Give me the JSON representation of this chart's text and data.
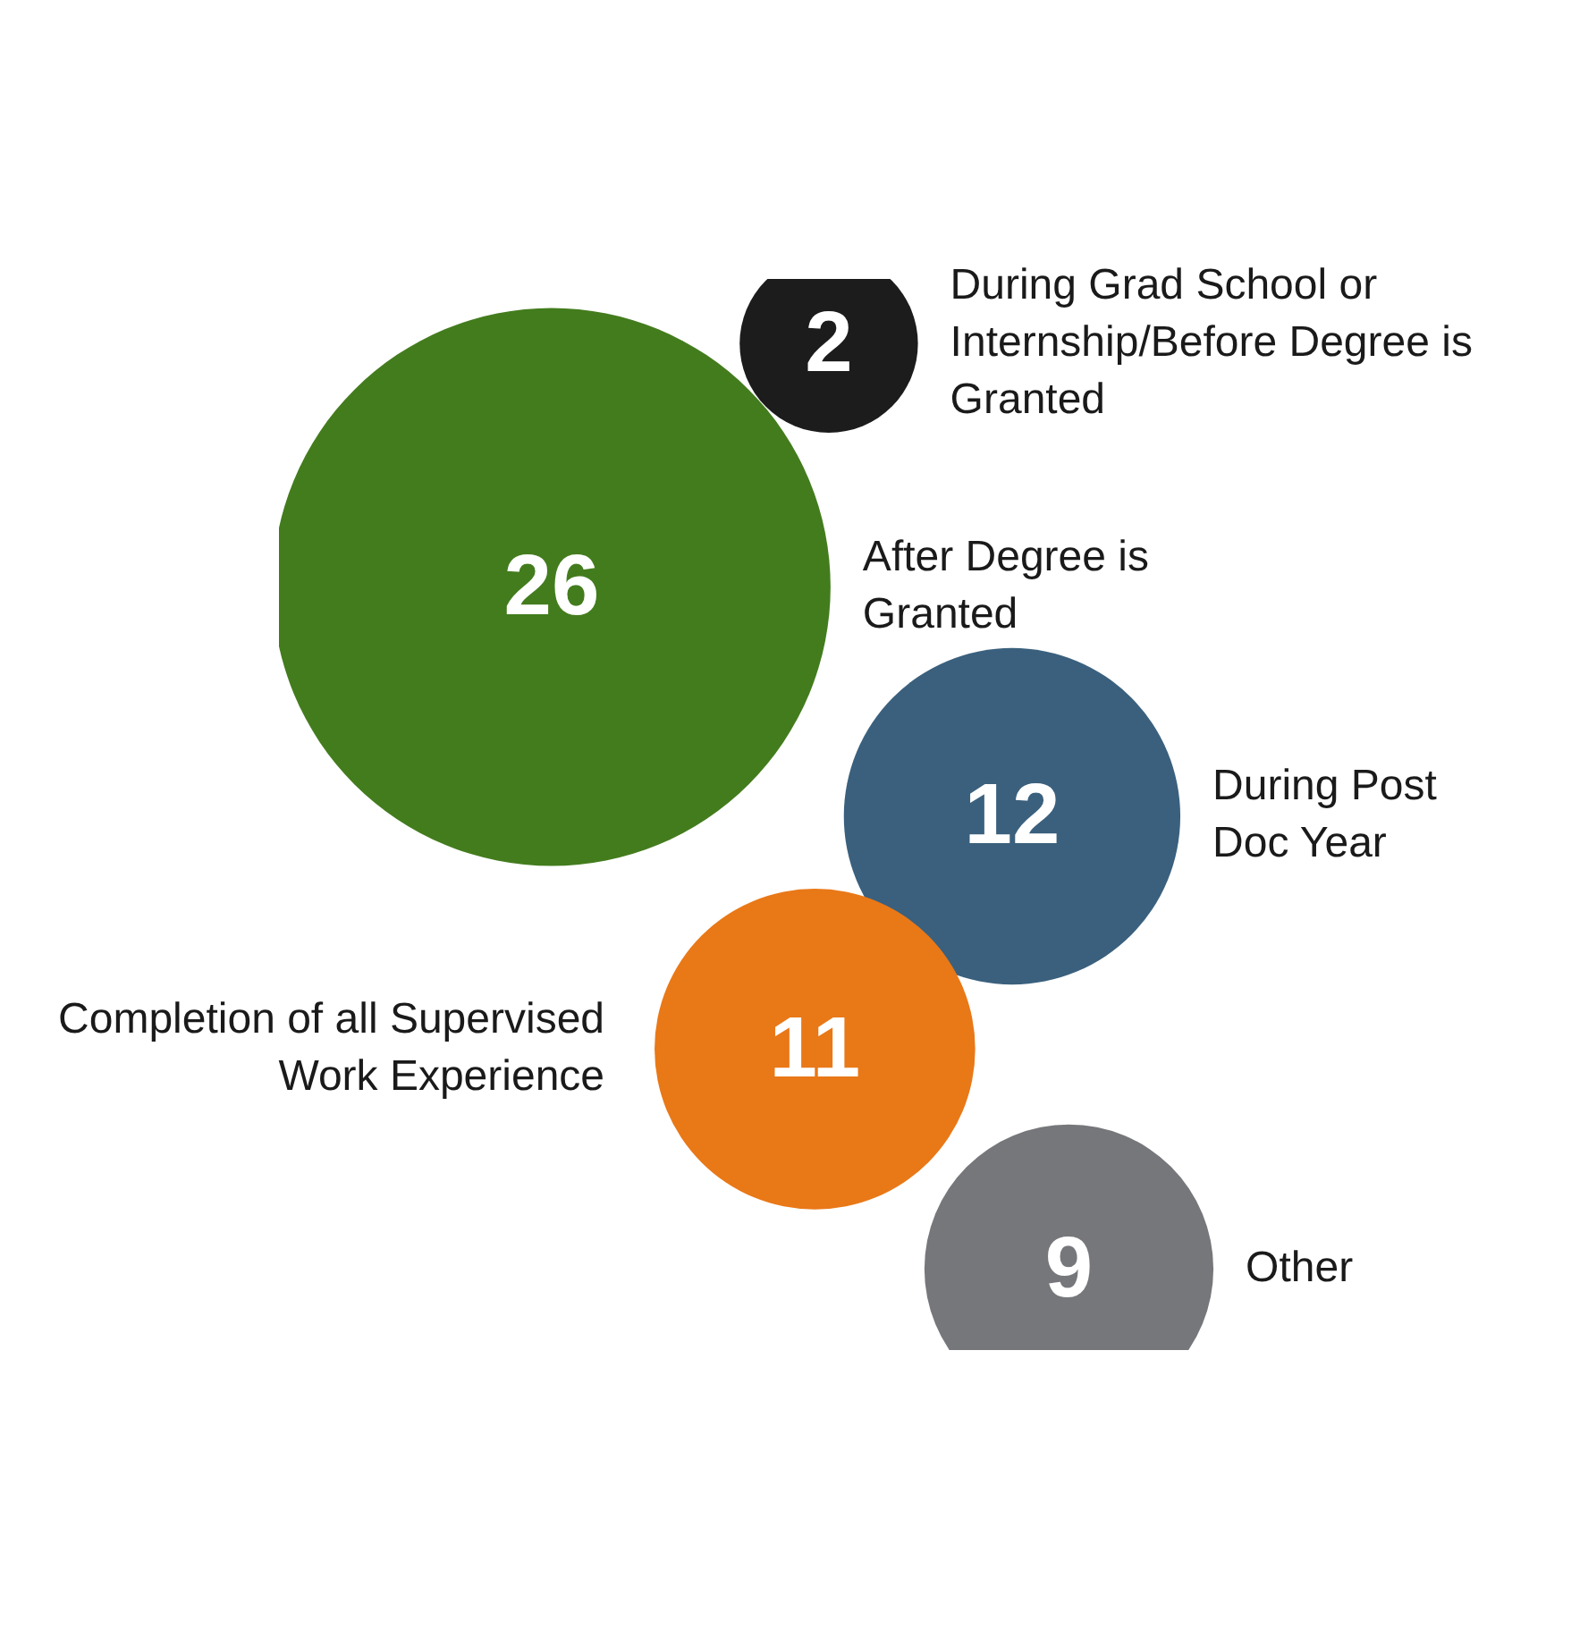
{
  "chart_data": {
    "type": "other",
    "categories": [
      "During Grad School or Internship/Before Degree is Granted",
      "After Degree is Granted",
      "During Post Doc Year",
      "Completion of all Supervised Work Experience",
      "Other"
    ],
    "values": [
      2,
      26,
      12,
      11,
      9
    ],
    "colors": [
      "#1c1c1c",
      "#437c1d",
      "#3a607d",
      "#e97817",
      "#76777a"
    ],
    "data_labels": true,
    "legend": false
  }
}
